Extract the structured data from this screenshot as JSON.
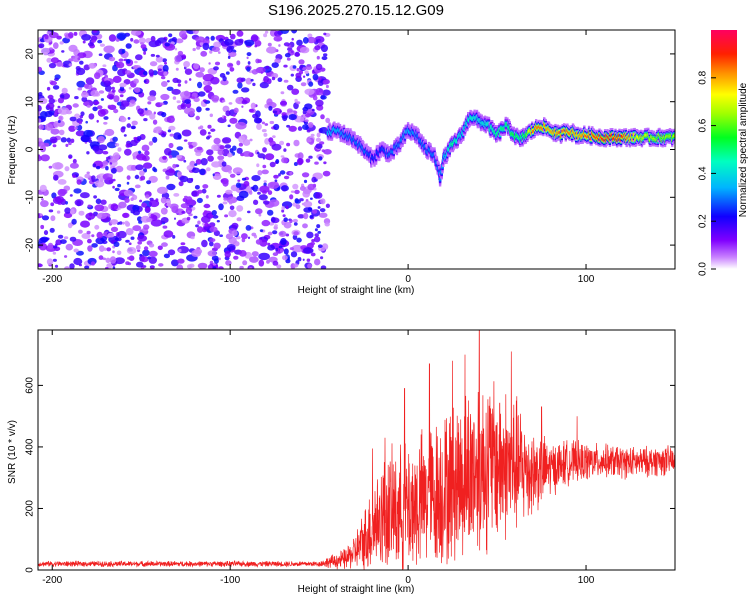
{
  "title": "S196.2025.270.15.12.G09",
  "chart_data": [
    {
      "type": "heatmap",
      "xlabel": "Height of straight line (km)",
      "ylabel": "Frequency (Hz)",
      "xlim": [
        -208,
        150
      ],
      "ylim": [
        -25,
        25
      ],
      "x_ticks": [
        "-200",
        "-100",
        "0",
        "100"
      ],
      "y_ticks": [
        "-20",
        "-10",
        "0",
        "10",
        "20"
      ],
      "colorbar": {
        "label": "Normalized spectral amplitude",
        "range": [
          0,
          1
        ],
        "ticks": [
          "0.0",
          "0.2",
          "0.4",
          "0.6",
          "0.8"
        ],
        "colors": [
          "#ffffff",
          "#a000ff",
          "#1000ff",
          "#00c8ff",
          "#00ff60",
          "#b0ff00",
          "#ffff00",
          "#ff8000",
          "#ff0000",
          "#ff0070"
        ]
      },
      "noise_region_x": [
        -208,
        -45
      ],
      "signal_track": {
        "x": [
          -45,
          -40,
          -35,
          -30,
          -25,
          -20,
          -15,
          -10,
          -5,
          0,
          5,
          10,
          15,
          18,
          20,
          25,
          30,
          35,
          40,
          45,
          50,
          55,
          60,
          63,
          66,
          70,
          75,
          80,
          85,
          90,
          95,
          100,
          110,
          120,
          130,
          140,
          150
        ],
        "y": [
          3.5,
          4,
          3,
          2,
          0,
          -2,
          0,
          -1,
          1,
          4,
          3,
          0,
          -1,
          -6,
          -2,
          1,
          3,
          7,
          6,
          5,
          3,
          5,
          3,
          2,
          3,
          4,
          5,
          4,
          3,
          4,
          3,
          3,
          2.5,
          2.5,
          2.5,
          2.5,
          2.5
        ],
        "amplitude": [
          0.35,
          0.35,
          0.3,
          0.3,
          0.3,
          0.25,
          0.25,
          0.3,
          0.3,
          0.35,
          0.3,
          0.3,
          0.3,
          0.3,
          0.35,
          0.5,
          0.4,
          0.45,
          0.4,
          0.45,
          0.5,
          0.5,
          0.55,
          0.5,
          0.55,
          0.85,
          0.85,
          0.8,
          0.85,
          0.85,
          0.8,
          0.85,
          0.9,
          0.9,
          0.7,
          0.65,
          0.65
        ]
      }
    },
    {
      "type": "line",
      "xlabel": "Height of straight line (km)",
      "ylabel": "SNR (10 * v/v)",
      "xlim": [
        -208,
        150
      ],
      "ylim": [
        0,
        780
      ],
      "x_ticks": [
        "-200",
        "-100",
        "0",
        "100"
      ],
      "y_ticks": [
        "0",
        "200",
        "400",
        "600"
      ],
      "series": [
        {
          "name": "SNR",
          "color": "#f02020",
          "envelope_x": [
            -208,
            -50,
            -35,
            -30,
            -25,
            -20,
            -15,
            -10,
            0,
            10,
            20,
            30,
            40,
            50,
            60,
            70,
            80,
            90,
            100,
            110,
            120,
            130,
            140,
            150
          ],
          "envelope_mean": [
            20,
            20,
            35,
            60,
            90,
            140,
            180,
            190,
            200,
            230,
            260,
            300,
            340,
            350,
            340,
            320,
            330,
            350,
            350,
            355,
            350,
            350,
            355,
            355
          ],
          "envelope_amp": [
            10,
            10,
            40,
            60,
            120,
            160,
            200,
            220,
            240,
            260,
            280,
            300,
            330,
            300,
            260,
            160,
            100,
            80,
            70,
            60,
            60,
            55,
            55,
            55
          ],
          "peaks": [
            [
              -20,
              395
            ],
            [
              -13,
              430
            ],
            [
              -2,
              590
            ],
            [
              12,
              670
            ],
            [
              25,
              680
            ],
            [
              32,
              700
            ],
            [
              40,
              780
            ],
            [
              58,
              710
            ],
            [
              75,
              530
            ],
            [
              95,
              500
            ]
          ]
        }
      ]
    }
  ]
}
